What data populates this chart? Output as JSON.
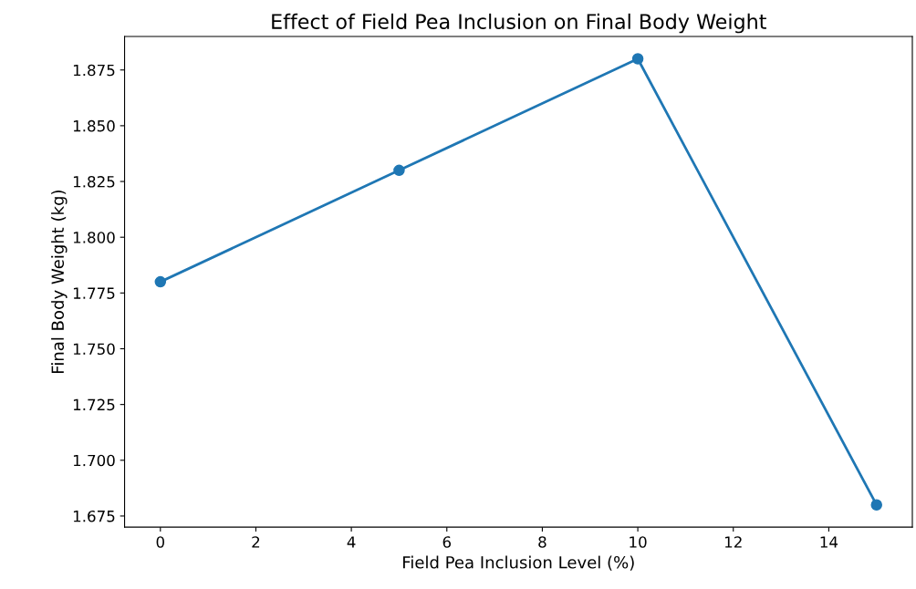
{
  "chart_data": {
    "type": "line",
    "title": "Effect of Field Pea Inclusion on Final Body Weight",
    "xlabel": "Field Pea Inclusion Level (%)",
    "ylabel": "Final Body Weight (kg)",
    "x": [
      0,
      5,
      10,
      15
    ],
    "series": [
      {
        "color": "#1f77b4",
        "values": [
          1.78,
          1.83,
          1.88,
          1.68
        ]
      }
    ],
    "xlim": [
      -0.75,
      15.75
    ],
    "xticks": [
      0,
      2,
      4,
      6,
      8,
      10,
      12,
      14
    ],
    "ylim": [
      1.67,
      1.89
    ],
    "yticks": [
      {
        "value": 1.675,
        "label": "1.675"
      },
      {
        "value": 1.7,
        "label": "1.700"
      },
      {
        "value": 1.725,
        "label": "1.725"
      },
      {
        "value": 1.75,
        "label": "1.750"
      },
      {
        "value": 1.775,
        "label": "1.775"
      },
      {
        "value": 1.8,
        "label": "1.800"
      },
      {
        "value": 1.825,
        "label": "1.825"
      },
      {
        "value": 1.85,
        "label": "1.850"
      },
      {
        "value": 1.875,
        "label": "1.875"
      }
    ],
    "marker": "circle",
    "line_style": "solid",
    "grid": false,
    "legend": false
  }
}
